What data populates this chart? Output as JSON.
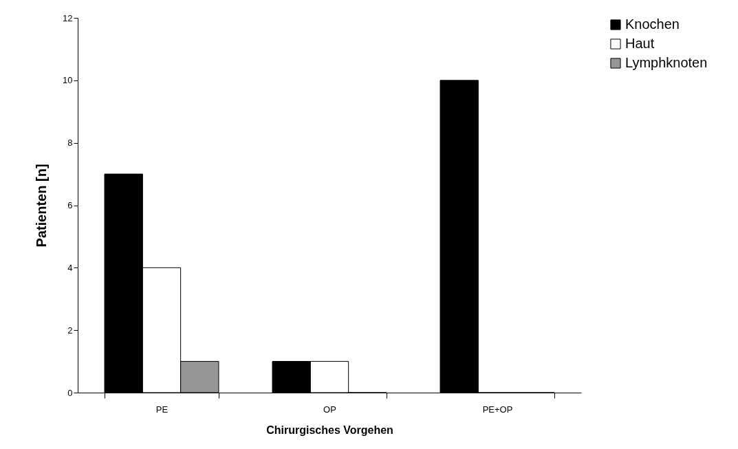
{
  "chart_data": {
    "type": "bar",
    "xlabel": "Chirurgisches  Vorgehen",
    "ylabel": "Patienten [n]",
    "categories": [
      "PE",
      "OP",
      "PE+OP"
    ],
    "series": [
      {
        "name": "Knochen",
        "color": "#000000",
        "values": [
          7,
          1,
          10
        ]
      },
      {
        "name": "Haut",
        "color": "#ffffff",
        "values": [
          4,
          1,
          0
        ]
      },
      {
        "name": "Lymphknoten",
        "color": "#969696",
        "values": [
          1,
          0,
          0
        ]
      }
    ],
    "ylim": [
      0,
      12
    ],
    "yticks": [
      0,
      2,
      4,
      6,
      8,
      10,
      12
    ],
    "grid": false,
    "legend": "right"
  }
}
